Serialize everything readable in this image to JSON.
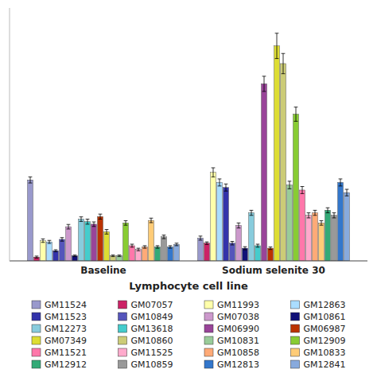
{
  "chart_data": {
    "type": "bar",
    "xlabel": "Lymphocyte cell line",
    "categories": [
      "Baseline",
      "Sodium selenite 30"
    ],
    "series": [
      {
        "name": "GM11524",
        "color": "#9999cc",
        "values": [
          3.2,
          0.9
        ],
        "errors": [
          0.12,
          0.08
        ]
      },
      {
        "name": "GM07057",
        "color": "#cc2266",
        "values": [
          0.15,
          0.7
        ],
        "errors": [
          0.04,
          0.05
        ]
      },
      {
        "name": "GM11993",
        "color": "#ffffaa",
        "values": [
          0.8,
          3.5
        ],
        "errors": [
          0.07,
          0.18
        ]
      },
      {
        "name": "GM12863",
        "color": "#aaddff",
        "values": [
          0.75,
          3.1
        ],
        "errors": [
          0.06,
          0.14
        ]
      },
      {
        "name": "GM11523",
        "color": "#3333aa",
        "values": [
          0.4,
          2.9
        ],
        "errors": [
          0.04,
          0.14
        ]
      },
      {
        "name": "GM10849",
        "color": "#5555bb",
        "values": [
          0.85,
          0.7
        ],
        "errors": [
          0.07,
          0.07
        ]
      },
      {
        "name": "GM07038",
        "color": "#cc99cc",
        "values": [
          1.35,
          1.4
        ],
        "errors": [
          0.09,
          0.1
        ]
      },
      {
        "name": "GM10861",
        "color": "#111177",
        "values": [
          0.2,
          0.5
        ],
        "errors": [
          0.03,
          0.06
        ]
      },
      {
        "name": "GM12273",
        "color": "#88ccdd",
        "values": [
          1.65,
          1.9
        ],
        "errors": [
          0.09,
          0.1
        ]
      },
      {
        "name": "GM13618",
        "color": "#44cccc",
        "values": [
          1.55,
          0.6
        ],
        "errors": [
          0.1,
          0.06
        ]
      },
      {
        "name": "GM06990",
        "color": "#994499",
        "values": [
          1.45,
          7.0
        ],
        "errors": [
          0.09,
          0.3
        ]
      },
      {
        "name": "GM06987",
        "color": "#bb3300",
        "values": [
          1.75,
          0.5
        ],
        "errors": [
          0.1,
          0.05
        ]
      },
      {
        "name": "GM07349",
        "color": "#dddd33",
        "values": [
          1.15,
          8.5
        ],
        "errors": [
          0.09,
          0.5
        ]
      },
      {
        "name": "GM10860",
        "color": "#cccc77",
        "values": [
          0.2,
          7.8
        ],
        "errors": [
          0.03,
          0.4
        ]
      },
      {
        "name": "GM10831",
        "color": "#99cc99",
        "values": [
          0.2,
          3.0
        ],
        "errors": [
          0.03,
          0.15
        ]
      },
      {
        "name": "GM12909",
        "color": "#88cc33",
        "values": [
          1.5,
          5.8
        ],
        "errors": [
          0.09,
          0.28
        ]
      },
      {
        "name": "GM11521",
        "color": "#ff77aa",
        "values": [
          0.6,
          2.8
        ],
        "errors": [
          0.06,
          0.14
        ]
      },
      {
        "name": "GM11525",
        "color": "#ffaacc",
        "values": [
          0.45,
          1.8
        ],
        "errors": [
          0.05,
          0.1
        ]
      },
      {
        "name": "GM10858",
        "color": "#ffaa77",
        "values": [
          0.55,
          1.9
        ],
        "errors": [
          0.05,
          0.1
        ]
      },
      {
        "name": "GM10833",
        "color": "#ffcc77",
        "values": [
          1.6,
          1.5
        ],
        "errors": [
          0.09,
          0.09
        ]
      },
      {
        "name": "GM12912",
        "color": "#33aa77",
        "values": [
          0.55,
          2.0
        ],
        "errors": [
          0.05,
          0.1
        ]
      },
      {
        "name": "GM10859",
        "color": "#999999",
        "values": [
          0.95,
          1.8
        ],
        "errors": [
          0.07,
          0.1
        ]
      },
      {
        "name": "GM12813",
        "color": "#3377cc",
        "values": [
          0.55,
          3.1
        ],
        "errors": [
          0.05,
          0.14
        ]
      },
      {
        "name": "GM12841",
        "color": "#88aadd",
        "values": [
          0.65,
          2.7
        ],
        "errors": [
          0.05,
          0.13
        ]
      }
    ],
    "ylim": [
      0,
      10
    ],
    "yticks": [],
    "tick_labels": "x",
    "grid": false,
    "legend": "bottom"
  }
}
